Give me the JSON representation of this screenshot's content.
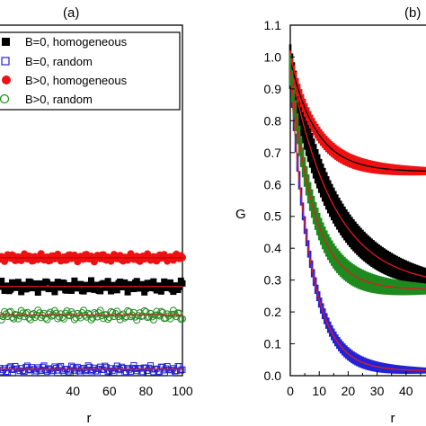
{
  "chart_data": [
    {
      "panel": "(a)",
      "type": "scatter",
      "xlabel": "r",
      "ylabel": "",
      "xlim": [
        0,
        100
      ],
      "xticks": [
        40,
        60,
        80,
        100
      ],
      "ylim": [
        0,
        1.1
      ],
      "legend_placement": "top-left",
      "series": [
        {
          "name": "B=0, homogeneous",
          "marker": "square-filled",
          "color": "#000000",
          "level": 0.28,
          "spread": 0.012,
          "fit_color": "#e31a1c"
        },
        {
          "name": "B=0, random",
          "marker": "square-open",
          "color": "#2323d6",
          "level": 0.02,
          "spread": 0.008,
          "fit_color": "#e31a1c"
        },
        {
          "name": "B>0, homogeneous",
          "marker": "circle-filled",
          "color": "#ee1111",
          "level": 0.37,
          "spread": 0.008,
          "fit_color": "#cc0000"
        },
        {
          "name": "B>0, random",
          "marker": "circle-open",
          "color": "#1f8a1f",
          "level": 0.19,
          "spread": 0.01,
          "fit_color": "#e31a1c"
        }
      ]
    },
    {
      "panel": "(b)",
      "type": "scatter",
      "xlabel": "r",
      "ylabel": "G",
      "xlim": [
        0,
        50
      ],
      "xticks": [
        0,
        10,
        20,
        30,
        40
      ],
      "ylim": [
        0,
        1.1
      ],
      "yticks": [
        "0.0",
        "0.1",
        "0.2",
        "0.3",
        "0.4",
        "0.5",
        "0.6",
        "0.7",
        "0.8",
        "0.9",
        "1.0",
        "1.1"
      ],
      "series": [
        {
          "name": "B=0, homogeneous",
          "color": "#000000",
          "start": 0.97,
          "plateau": 0.28,
          "decay": 15,
          "spread_start": 0.07,
          "spread_end": 0.025
        },
        {
          "name": "B=0, random",
          "color": "#2323d6",
          "start": 0.95,
          "plateau": 0.015,
          "decay": 7,
          "spread_start": 0.03,
          "spread_end": 0.008
        },
        {
          "name": "B>0, homogeneous",
          "color": "#ee1111",
          "start": 0.99,
          "plateau": 0.64,
          "decay": 9,
          "spread_start": 0.03,
          "spread_end": 0.012
        },
        {
          "name": "B>0, random",
          "color": "#1f8a1f",
          "start": 0.96,
          "plateau": 0.27,
          "decay": 8,
          "spread_start": 0.05,
          "spread_end": 0.015
        }
      ]
    }
  ]
}
